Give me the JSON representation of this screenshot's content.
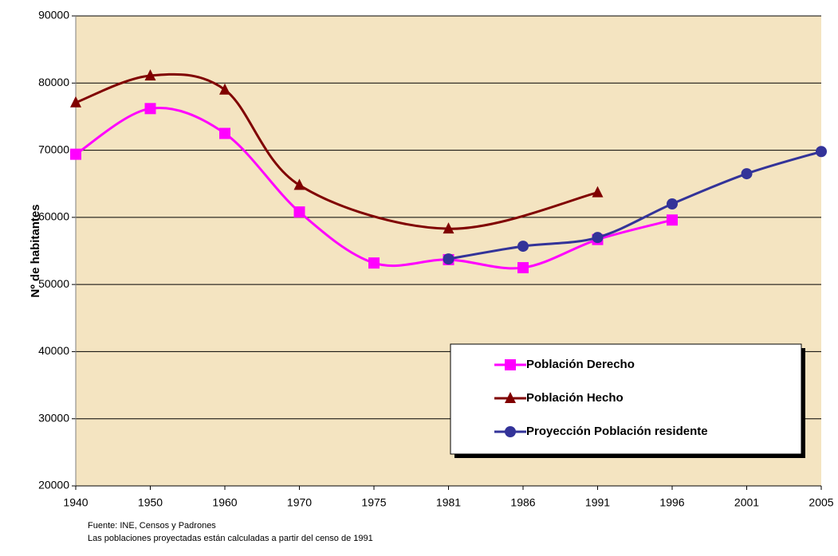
{
  "chart_data": {
    "type": "line",
    "ylabel": "Nº de habitantes",
    "categories": [
      "1940",
      "1950",
      "1960",
      "1970",
      "1975",
      "1981",
      "1986",
      "1991",
      "1996",
      "2001",
      "2005"
    ],
    "series": [
      {
        "name": "Población Derecho",
        "color": "#ff00ff",
        "marker": "square",
        "values": [
          69400,
          76200,
          72500,
          60800,
          53200,
          53700,
          52500,
          56700,
          59600,
          null,
          null
        ]
      },
      {
        "name": "Población Hecho",
        "color": "#800000",
        "marker": "triangle",
        "values": [
          77100,
          81100,
          79000,
          64800,
          null,
          58300,
          null,
          63700,
          null,
          null,
          null
        ]
      },
      {
        "name": "Proyección Población residente",
        "color": "#333399",
        "marker": "circle",
        "values": [
          null,
          null,
          null,
          null,
          null,
          53800,
          55700,
          57000,
          62000,
          66500,
          69800
        ]
      }
    ],
    "ylim": [
      20000,
      90000
    ],
    "yticks": [
      20000,
      30000,
      40000,
      50000,
      60000,
      70000,
      80000,
      90000
    ],
    "grid": true,
    "smooth": true,
    "span_gaps": true,
    "legend": "lower right",
    "notes": [
      "Fuente: INE, Censos y Padrones",
      "Las poblaciones proyectadas están calculadas a partir del censo de 1991"
    ]
  }
}
